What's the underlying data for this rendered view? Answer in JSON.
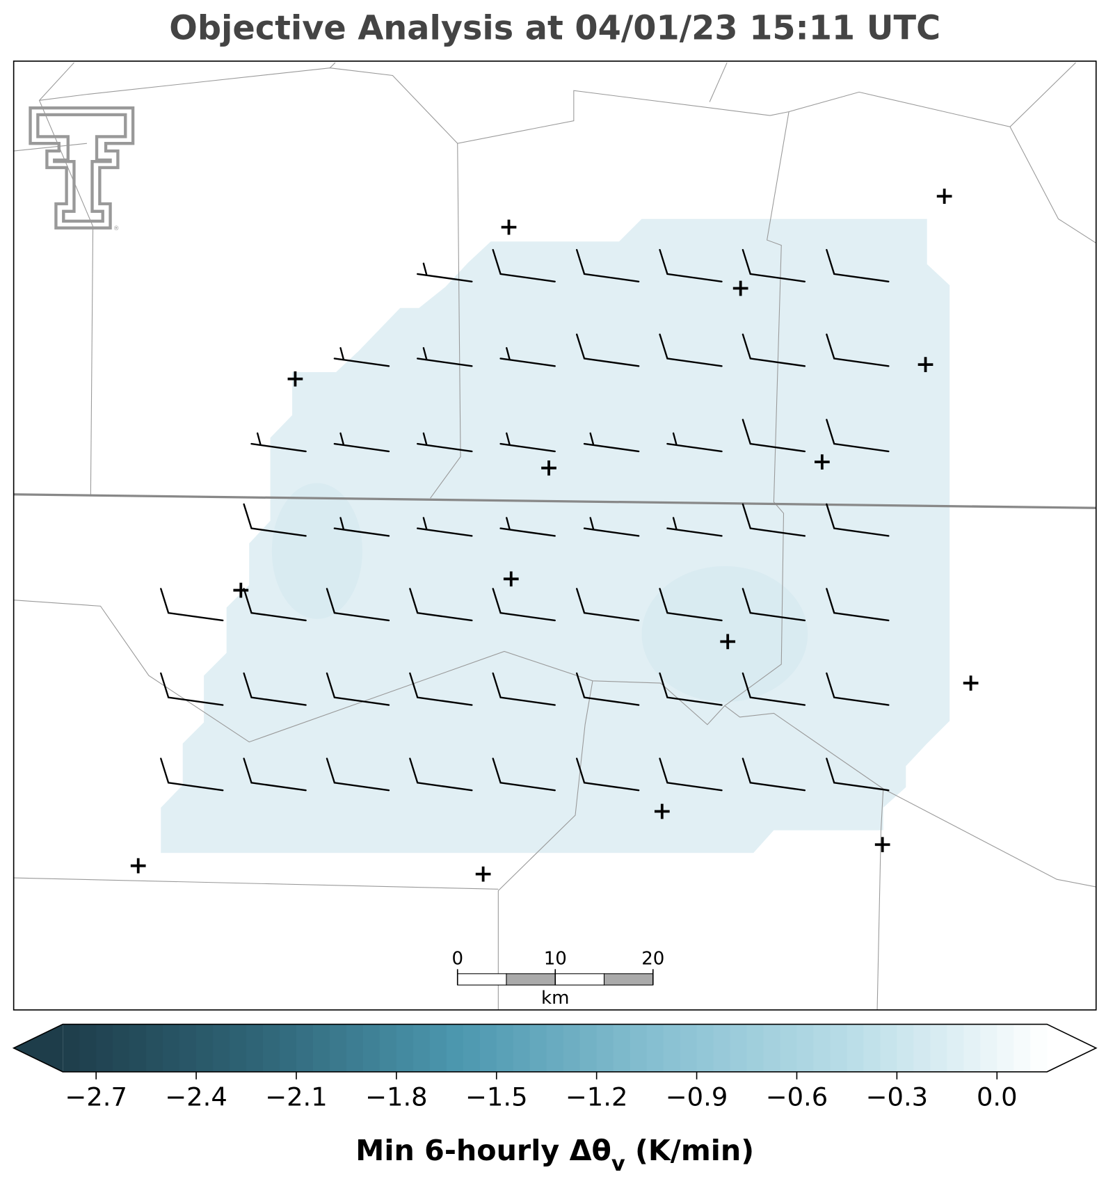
{
  "title": "Objective Analysis at 04/01/23 15:11 UTC",
  "colorbar": {
    "vlim": [
      -2.8,
      0.15
    ],
    "ticks": [
      {
        "value": -2.7,
        "label": "−2.7"
      },
      {
        "value": -2.4,
        "label": "−2.4"
      },
      {
        "value": -2.1,
        "label": "−2.1"
      },
      {
        "value": -1.8,
        "label": "−1.8"
      },
      {
        "value": -1.5,
        "label": "−1.5"
      },
      {
        "value": -1.2,
        "label": "−1.2"
      },
      {
        "value": -0.9,
        "label": "−0.9"
      },
      {
        "value": -0.6,
        "label": "−0.6"
      },
      {
        "value": -0.3,
        "label": "−0.3"
      },
      {
        "value": 0.0,
        "label": "0.0"
      }
    ],
    "colors": [
      "#1e3d4a",
      "#2f6577",
      "#4c97ae",
      "#86bfd1",
      "#b9dde7",
      "#ffffff"
    ],
    "label": "Min 6-hourly Δθ",
    "label_sub": "v",
    "label_end": " (K/min)"
  },
  "scalebar": {
    "lim": [
      0,
      20
    ],
    "ticks": [
      0,
      10,
      20
    ],
    "unit": "km"
  }
}
